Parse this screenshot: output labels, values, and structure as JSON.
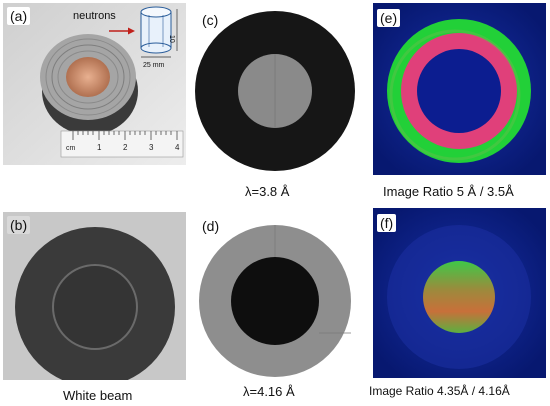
{
  "panels": {
    "a": {
      "label": "(a)",
      "arrow_text": "neutrons",
      "dim_height": "10",
      "dim_width": "25 mm",
      "ruler_unit": "cm",
      "ruler_numbers": [
        "1",
        "2",
        "3",
        "4"
      ]
    },
    "b": {
      "label": "(b)",
      "caption": "White beam"
    },
    "c": {
      "label": "(c)",
      "caption": "λ=3.8 Å"
    },
    "d": {
      "label": "(d)",
      "caption": "λ=4.16 Å"
    },
    "e": {
      "label": "(e)",
      "caption": "Image Ratio 5 Å  / 3.5Å"
    },
    "f": {
      "label": "(f)",
      "caption": "Image Ratio 4.35Å  / 4.16Å"
    }
  },
  "colors": {
    "ratio_background": "#0a1a8a",
    "ratio_green": "#22d038",
    "ratio_pink": "#e0407a",
    "ratio_orange": "#c8703a",
    "radiograph_dark": "#141414",
    "radiograph_gray": "#8c8c8c"
  }
}
